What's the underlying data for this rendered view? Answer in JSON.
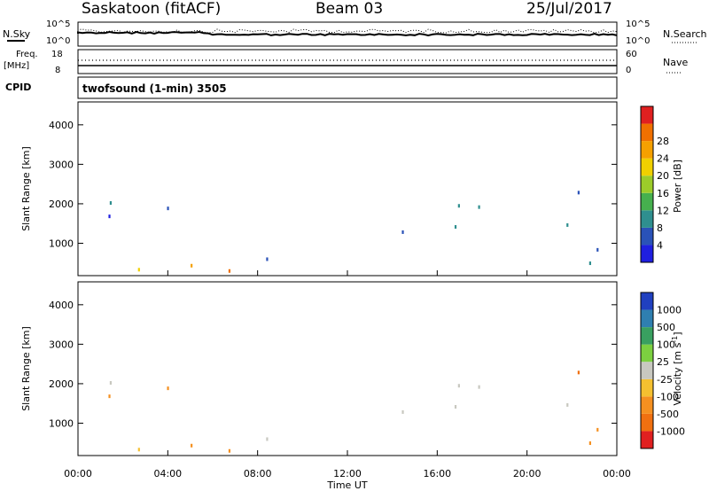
{
  "header": {
    "station": "Saskatoon (fitACF)",
    "beam": "Beam 03",
    "date": "25/Jul/2017"
  },
  "panels": {
    "noise": {
      "left_label": "N.Sky",
      "right_label": "N.Search",
      "ticks_left": [
        "10^5",
        "10^0"
      ],
      "ticks_right": [
        "10^5",
        "10^0"
      ]
    },
    "freq": {
      "left_label_1": "Freq.",
      "left_label_2": "[MHz]",
      "right_label": "Nave",
      "ticks_left": [
        "18",
        "8"
      ],
      "ticks_right": [
        "60",
        "0"
      ]
    },
    "cpid": {
      "label": "CPID",
      "text": "twofsound (1-min) 3505"
    }
  },
  "chart_data": [
    {
      "type": "heatmap",
      "name": "power",
      "ylabel": "Slant Range [km]",
      "yticks": [
        1000,
        2000,
        3000,
        4000
      ],
      "ylim": [
        180,
        4580
      ],
      "xlim": [
        0,
        24
      ],
      "colorbar_label": "Power [dB]",
      "colorbar_ticks": [
        "4",
        "8",
        "12",
        "16",
        "20",
        "24",
        "28"
      ],
      "colorbar_colors": [
        "#1f1fe0",
        "#2a52b8",
        "#2f8f8f",
        "#46b04e",
        "#9ccc2a",
        "#f0d000",
        "#f5a000",
        "#f07000",
        "#e02020"
      ],
      "echo_regions": [
        {
          "t0": 2.0,
          "t1": 5.0,
          "r0": 1700,
          "r1": 2300
        },
        {
          "t0": 0.0,
          "t1": 2.0,
          "r0": 200,
          "r1": 2400
        },
        {
          "t0": 6.0,
          "t1": 9.0,
          "r0": 500,
          "r1": 1000
        },
        {
          "t0": 0.0,
          "t1": 24.0,
          "r0": 180,
          "r1": 500
        },
        {
          "t0": 13.0,
          "t1": 22.0,
          "r0": 900,
          "r1": 2100
        },
        {
          "t0": 21.0,
          "t1": 24.0,
          "r0": 300,
          "r1": 2400
        }
      ]
    },
    {
      "type": "heatmap",
      "name": "velocity",
      "ylabel": "Slant Range [km]",
      "xlabel": "Time UT",
      "yticks": [
        1000,
        2000,
        3000,
        4000
      ],
      "ylim": [
        180,
        4580
      ],
      "xlim": [
        0,
        24
      ],
      "xticks": [
        "00:00",
        "04:00",
        "08:00",
        "12:00",
        "16:00",
        "20:00",
        "00:00"
      ],
      "colorbar_label": "Velocity [m s^-1]",
      "colorbar_ticks": [
        "1000",
        "500",
        "100",
        "25",
        "-25",
        "-100",
        "-500",
        "-1000"
      ],
      "colorbar_colors": [
        "#2040c0",
        "#2f7fb0",
        "#39a060",
        "#7cd040",
        "#c8c8c0",
        "#f5c030",
        "#f59020",
        "#f07010",
        "#e02020"
      ]
    }
  ]
}
